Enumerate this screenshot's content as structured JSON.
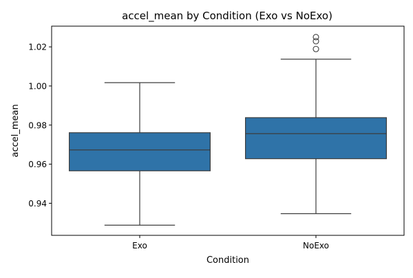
{
  "chart_data": {
    "type": "box",
    "title": "accel_mean by Condition (Exo vs NoExo)",
    "xlabel": "Condition",
    "ylabel": "accel_mean",
    "categories": [
      "Exo",
      "NoExo"
    ],
    "ylim": [
      0.9236,
      1.0306
    ],
    "yticks": [
      0.94,
      0.96,
      0.98,
      1.0,
      1.02
    ],
    "ytick_labels": [
      "0.94",
      "0.96",
      "0.98",
      "1.00",
      "1.02"
    ],
    "grid": false,
    "legend": "none",
    "box_color": "#2f73a8",
    "line_color": "#3d3d3d",
    "boxes": [
      {
        "category": "Exo",
        "whisker_low": 0.9288,
        "q1": 0.9566,
        "median": 0.9673,
        "q3": 0.9761,
        "whisker_high": 1.0017,
        "outliers": []
      },
      {
        "category": "NoExo",
        "whisker_low": 0.9347,
        "q1": 0.9628,
        "median": 0.9756,
        "q3": 0.9838,
        "whisker_high": 1.0137,
        "outliers": [
          1.0189,
          1.0229,
          1.025
        ]
      }
    ]
  }
}
